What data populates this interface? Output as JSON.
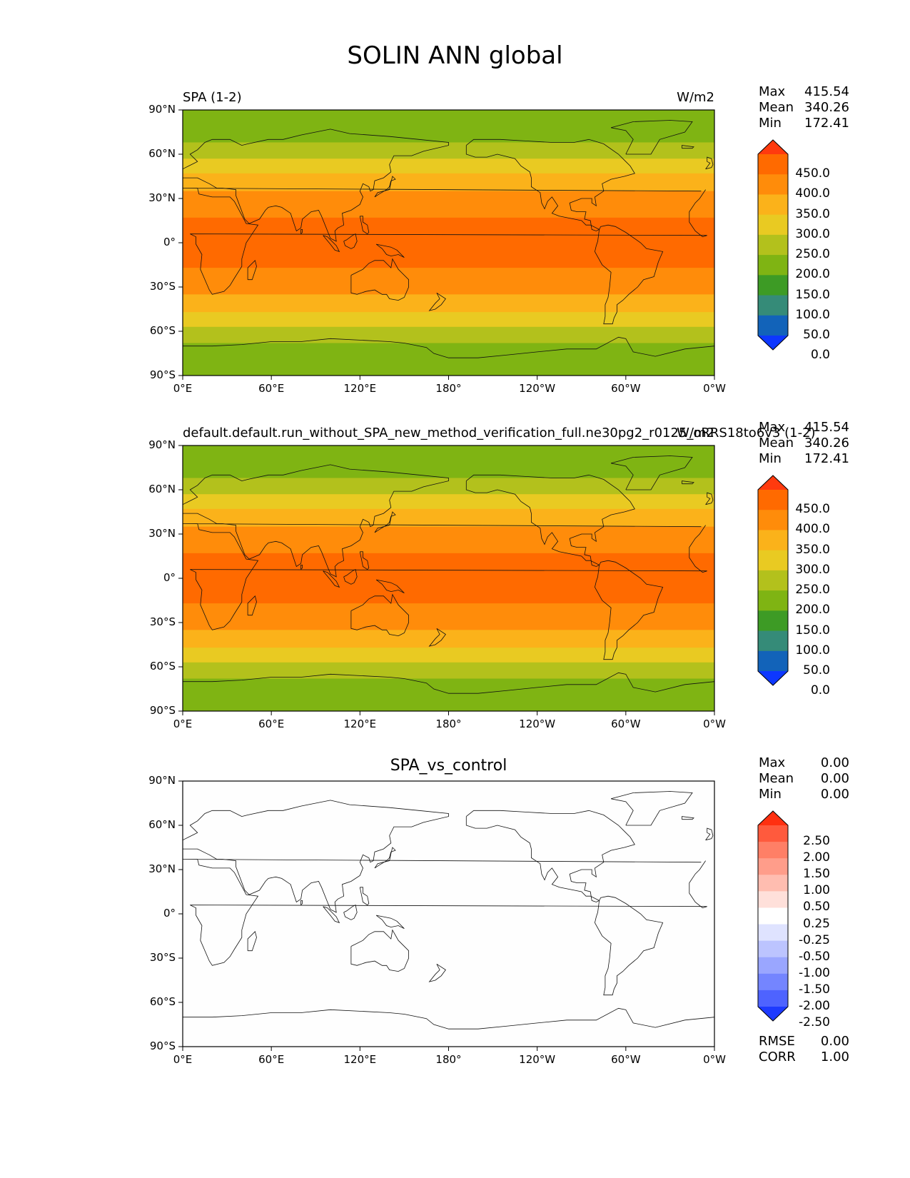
{
  "title": "SOLIN ANN global",
  "lat_ticks": [
    "90°N",
    "60°N",
    "30°N",
    "0°",
    "30°S",
    "60°S",
    "90°S"
  ],
  "lon_ticks": [
    "0°E",
    "60°E",
    "120°E",
    "180°",
    "120°W",
    "60°W",
    "0°W"
  ],
  "stat_labels": {
    "max": "Max",
    "mean": "Mean",
    "min": "Min",
    "rmse": "RMSE",
    "corr": "CORR"
  },
  "panels": [
    {
      "left_title": "SPA (1-2)",
      "center_title": "",
      "right_title": "W/m2",
      "stats": {
        "max": "415.54",
        "mean": "340.26",
        "min": "172.41"
      },
      "colorbar": {
        "labels": [
          "450.0",
          "400.0",
          "350.0",
          "300.0",
          "250.0",
          "200.0",
          "150.0",
          "100.0",
          "50.0",
          "0.0"
        ],
        "colors": [
          "#ff3a0e",
          "#ff6a00",
          "#ff8c0a",
          "#fbb21a",
          "#e9ca22",
          "#b3c11c",
          "#7fb413",
          "#3d9b25",
          "#358b78",
          "#1263b9",
          "#0d37ff"
        ]
      },
      "field": {
        "type": "zonal bands",
        "band_edges_lat": [
          90,
          68,
          57,
          47,
          35,
          17,
          -17,
          -35,
          -47,
          -57,
          -68,
          -90
        ],
        "band_colors": [
          "#7fb413",
          "#b3c11c",
          "#e9ca22",
          "#fbb21a",
          "#ff8c0a",
          "#ff6a00",
          "#ff8c0a",
          "#fbb21a",
          "#e9ca22",
          "#b3c11c",
          "#7fb413"
        ]
      }
    },
    {
      "left_title": "default.default.run_without_SPA_new_method_verification_full.ne30pg2_r0125_oRRS18to6v3 (1-2)",
      "center_title": "",
      "right_title": "W/m2",
      "stats": {
        "max": "415.54",
        "mean": "340.26",
        "min": "172.41"
      },
      "colorbar": {
        "labels": [
          "450.0",
          "400.0",
          "350.0",
          "300.0",
          "250.0",
          "200.0",
          "150.0",
          "100.0",
          "50.0",
          "0.0"
        ],
        "colors": [
          "#ff3a0e",
          "#ff6a00",
          "#ff8c0a",
          "#fbb21a",
          "#e9ca22",
          "#b3c11c",
          "#7fb413",
          "#3d9b25",
          "#358b78",
          "#1263b9",
          "#0d37ff"
        ]
      },
      "field": {
        "type": "zonal bands",
        "band_edges_lat": [
          90,
          68,
          57,
          47,
          35,
          17,
          -17,
          -35,
          -47,
          -57,
          -68,
          -90
        ],
        "band_colors": [
          "#7fb413",
          "#b3c11c",
          "#e9ca22",
          "#fbb21a",
          "#ff8c0a",
          "#ff6a00",
          "#ff8c0a",
          "#fbb21a",
          "#e9ca22",
          "#b3c11c",
          "#7fb413"
        ]
      }
    },
    {
      "left_title": "",
      "center_title": "SPA_vs_control",
      "right_title": "",
      "stats": {
        "max": "0.00",
        "mean": "0.00",
        "min": "0.00"
      },
      "extra_stats": {
        "rmse": "0.00",
        "corr": "1.00"
      },
      "colorbar": {
        "labels": [
          "2.50",
          "2.00",
          "1.50",
          "1.00",
          "0.50",
          "0.25",
          "-0.25",
          "-0.50",
          "-1.00",
          "-1.50",
          "-2.00",
          "-2.50"
        ],
        "colors": [
          "#ff3010",
          "#ff5a3d",
          "#ff7f66",
          "#ff9d8a",
          "#ffbdb0",
          "#ffe0da",
          "#ffffff",
          "#dfe3ff",
          "#bcc4ff",
          "#9aa6ff",
          "#7485ff",
          "#4e63ff",
          "#1d3aff"
        ]
      },
      "field": {
        "type": "uniform",
        "band_edges_lat": [
          90,
          -90
        ],
        "band_colors": [
          "#fefefe"
        ]
      }
    }
  ]
}
